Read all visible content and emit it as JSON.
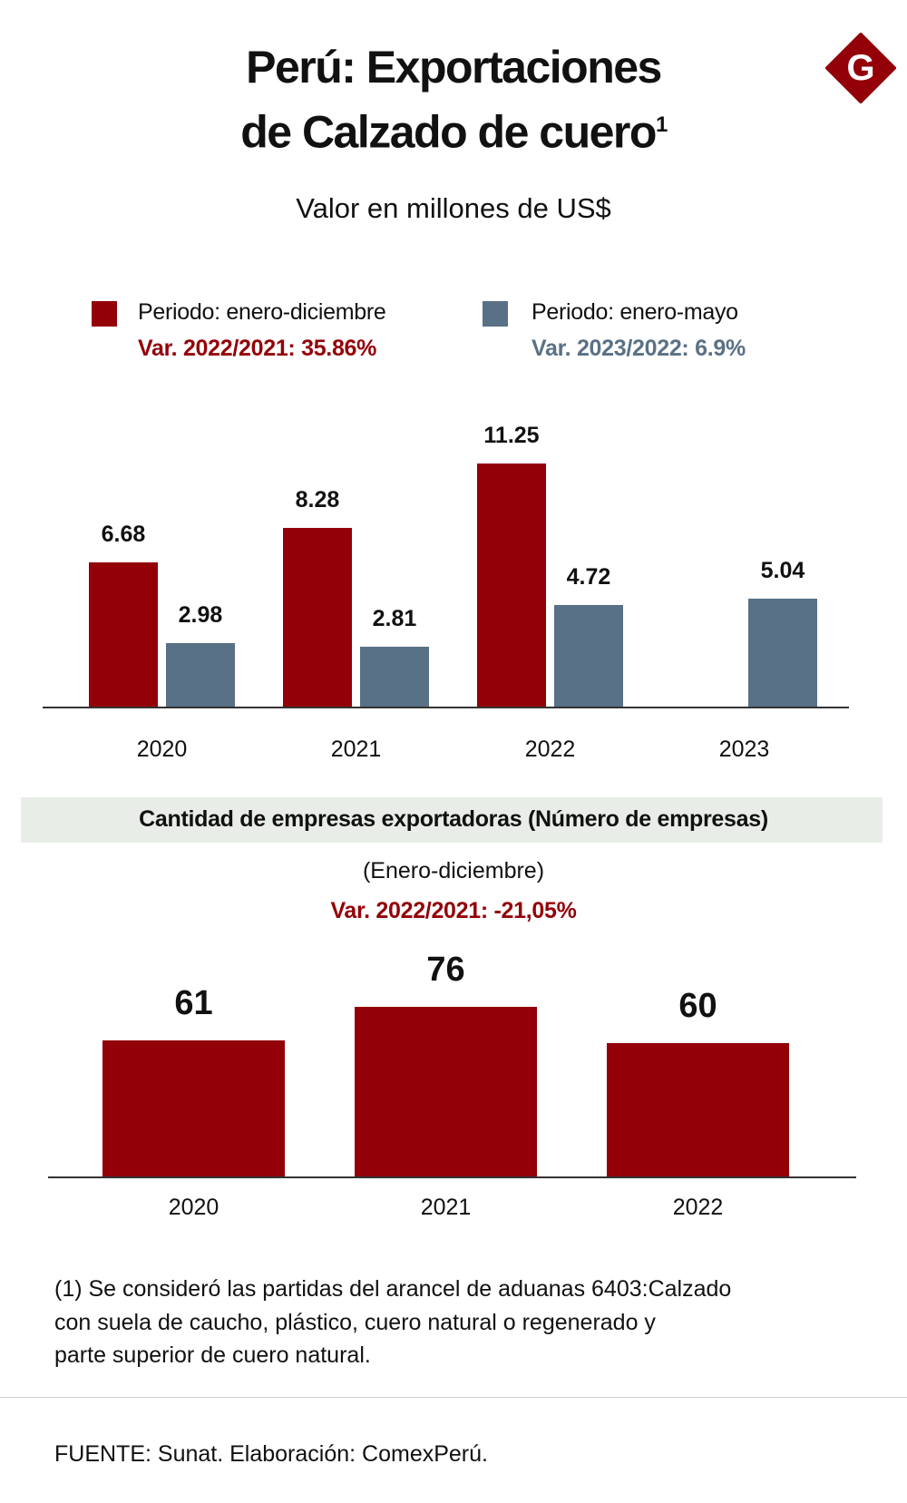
{
  "header": {
    "title_line1": "Perú: Exportaciones",
    "title_line2": "de Calzado de cuero",
    "title_superscript": "1",
    "subtitle": "Valor en millones de US$",
    "logo_letter": "G"
  },
  "colors": {
    "red": "#930008",
    "blue": "#587186",
    "band": "#e9ede7"
  },
  "chart_data": [
    {
      "type": "bar",
      "categories": [
        "2020",
        "2021",
        "2022",
        "2023"
      ],
      "series": [
        {
          "name": "Periodo: enero-diciembre",
          "note": "Var. 2022/2021:  35.86%",
          "values": [
            6.68,
            8.28,
            11.25,
            null
          ],
          "labels": [
            "6.68",
            "8.28",
            "11.25",
            ""
          ]
        },
        {
          "name": "Periodo: enero-mayo",
          "note": "Var. 2023/2022: 6.9%",
          "values": [
            2.98,
            2.81,
            4.72,
            5.04
          ],
          "labels": [
            "2.98",
            "2.81",
            "4.72",
            "5.04"
          ]
        }
      ],
      "title": "Valor en millones de US$",
      "legend": "top",
      "grid": false
    },
    {
      "type": "bar",
      "title": "Cantidad de empresas exportadoras (Número de empresas)",
      "subtitle": "(Enero-diciembre)",
      "note": "Var. 2022/2021:  -21,05%",
      "categories": [
        "2020",
        "2021",
        "2022"
      ],
      "values": [
        61,
        76,
        60
      ],
      "labels": [
        "61",
        "76",
        "60"
      ],
      "grid": false
    }
  ],
  "footnote": {
    "line1": "(1) Se consideró las partidas del arancel de aduanas 6403:Calzado",
    "line2": "con suela de caucho,  plástico, cuero natural o regenerado y",
    "line3": "parte superior de cuero natural."
  },
  "source": "FUENTE: Sunat. Elaboración: ComexPerú."
}
